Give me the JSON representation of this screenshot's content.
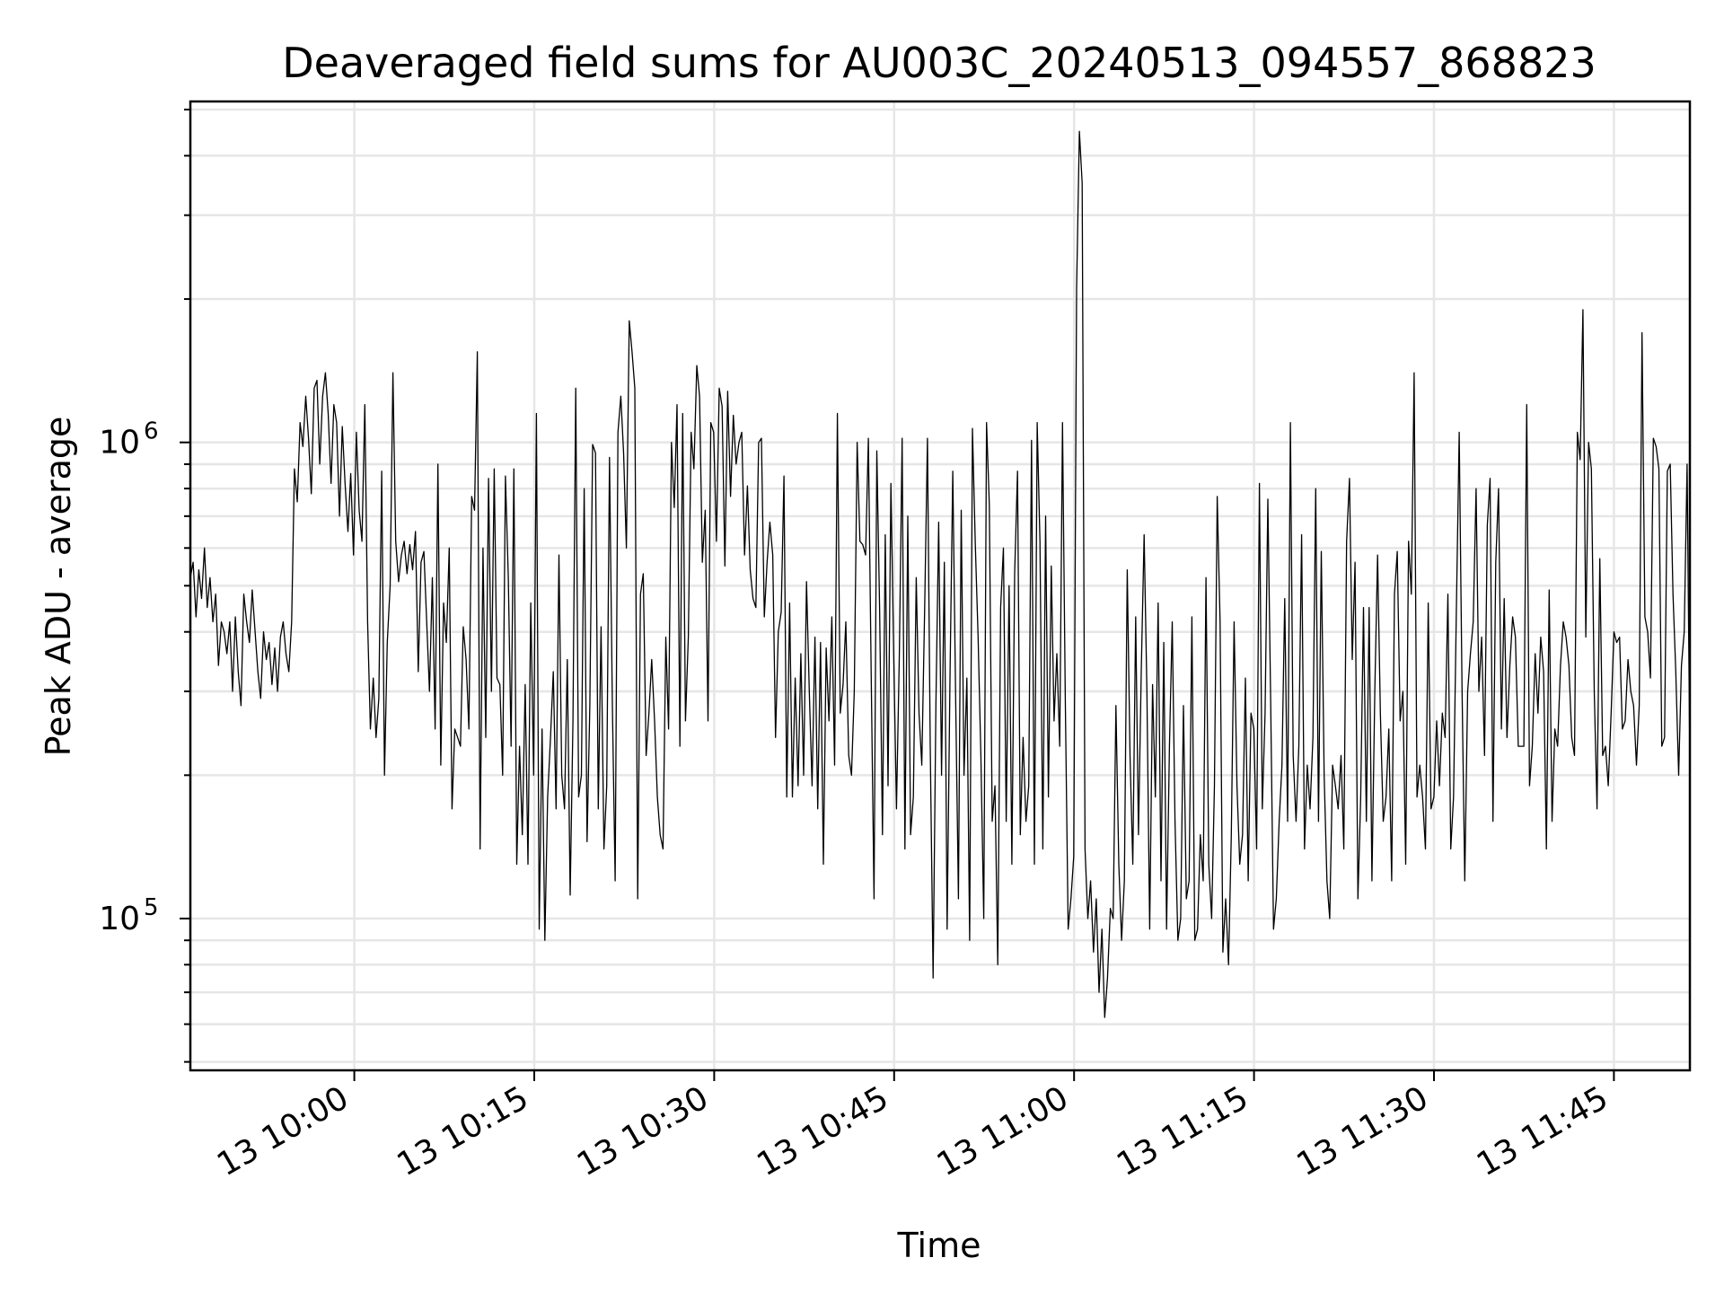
{
  "chart_data": {
    "type": "line",
    "title": "Deaveraged field sums for AU003C_20240513_094557_868823",
    "xlabel": "Time",
    "ylabel": "Peak ADU - average",
    "yscale": "log",
    "grid": true,
    "x_tick_labels": [
      "13 10:00",
      "13 10:15",
      "13 10:30",
      "13 10:45",
      "13 11:00",
      "13 11:15",
      "13 11:30",
      "13 11:45"
    ],
    "y_tick_labels": [
      {
        "base": "10",
        "exp": "5"
      },
      {
        "base": "10",
        "exp": "6"
      }
    ],
    "series": [
      {
        "color": "#000000",
        "x_start": "2024-05-13 09:46:20",
        "x_end": "2024-05-13 11:51:20",
        "values": [
          520000,
          560000,
          430000,
          540000,
          470000,
          600000,
          450000,
          520000,
          420000,
          480000,
          340000,
          420000,
          400000,
          360000,
          420000,
          300000,
          430000,
          330000,
          280000,
          480000,
          420000,
          380000,
          490000,
          400000,
          330000,
          290000,
          400000,
          350000,
          380000,
          310000,
          370000,
          300000,
          390000,
          420000,
          360000,
          330000,
          420000,
          880000,
          750000,
          1100000,
          980000,
          1250000,
          1020000,
          780000,
          1300000,
          1350000,
          900000,
          1250000,
          1400000,
          1150000,
          820000,
          1200000,
          1100000,
          700000,
          1080000,
          820000,
          650000,
          860000,
          580000,
          1050000,
          720000,
          620000,
          1200000,
          420000,
          250000,
          320000,
          240000,
          290000,
          870000,
          200000,
          380000,
          500000,
          1400000,
          620000,
          510000,
          580000,
          620000,
          530000,
          610000,
          540000,
          650000,
          330000,
          560000,
          590000,
          420000,
          300000,
          520000,
          250000,
          900000,
          210000,
          460000,
          380000,
          600000,
          170000,
          250000,
          240000,
          230000,
          410000,
          350000,
          250000,
          770000,
          720000,
          1550000,
          140000,
          600000,
          240000,
          840000,
          300000,
          880000,
          320000,
          310000,
          200000,
          850000,
          520000,
          230000,
          880000,
          130000,
          230000,
          150000,
          310000,
          130000,
          460000,
          200000,
          1150000,
          95000,
          250000,
          90000,
          180000,
          240000,
          330000,
          170000,
          580000,
          200000,
          170000,
          350000,
          112000,
          260000,
          1300000,
          180000,
          200000,
          800000,
          145000,
          280000,
          990000,
          950000,
          170000,
          410000,
          140000,
          190000,
          930000,
          280000,
          120000,
          1050000,
          1250000,
          950000,
          600000,
          1800000,
          1550000,
          1300000,
          110000,
          480000,
          530000,
          220000,
          270000,
          350000,
          260000,
          180000,
          150000,
          140000,
          390000,
          250000,
          1000000,
          730000,
          1200000,
          230000,
          1150000,
          260000,
          390000,
          1050000,
          880000,
          1450000,
          1250000,
          560000,
          720000,
          260000,
          1100000,
          1050000,
          620000,
          1300000,
          1190000,
          550000,
          1280000,
          770000,
          1140000,
          900000,
          1000000,
          1050000,
          580000,
          810000,
          540000,
          470000,
          450000,
          1000000,
          1020000,
          430000,
          560000,
          680000,
          580000,
          240000,
          400000,
          440000,
          850000,
          180000,
          460000,
          180000,
          320000,
          190000,
          360000,
          200000,
          510000,
          300000,
          190000,
          390000,
          170000,
          380000,
          130000,
          370000,
          260000,
          430000,
          210000,
          1150000,
          270000,
          310000,
          420000,
          220000,
          200000,
          300000,
          1000000,
          620000,
          610000,
          580000,
          1020000,
          330000,
          110000,
          960000,
          450000,
          150000,
          640000,
          190000,
          820000,
          360000,
          170000,
          360000,
          1020000,
          140000,
          700000,
          150000,
          180000,
          520000,
          270000,
          210000,
          450000,
          1020000,
          230000,
          75000,
          280000,
          680000,
          200000,
          560000,
          95000,
          320000,
          870000,
          300000,
          110000,
          720000,
          200000,
          320000,
          90000,
          1070000,
          610000,
          390000,
          220000,
          100000,
          1100000,
          740000,
          160000,
          190000,
          80000,
          450000,
          600000,
          160000,
          500000,
          130000,
          530000,
          870000,
          150000,
          240000,
          160000,
          190000,
          1010000,
          130000,
          1100000,
          620000,
          140000,
          700000,
          180000,
          550000,
          260000,
          360000,
          230000,
          1100000,
          290000,
          95000,
          110000,
          135000,
          2100000,
          4500000,
          3500000,
          140000,
          100000,
          120000,
          85000,
          110000,
          70000,
          95000,
          62000,
          75000,
          105000,
          100000,
          280000,
          130000,
          90000,
          120000,
          540000,
          220000,
          130000,
          430000,
          150000,
          330000,
          640000,
          300000,
          95000,
          310000,
          180000,
          460000,
          120000,
          380000,
          95000,
          230000,
          420000,
          160000,
          90000,
          100000,
          280000,
          110000,
          120000,
          430000,
          90000,
          95000,
          150000,
          120000,
          520000,
          130000,
          100000,
          190000,
          770000,
          420000,
          85000,
          110000,
          80000,
          150000,
          420000,
          190000,
          130000,
          150000,
          320000,
          120000,
          270000,
          250000,
          140000,
          820000,
          170000,
          270000,
          760000,
          280000,
          95000,
          110000,
          160000,
          210000,
          470000,
          160000,
          1100000,
          220000,
          160000,
          230000,
          640000,
          140000,
          210000,
          170000,
          240000,
          800000,
          160000,
          590000,
          200000,
          120000,
          100000,
          210000,
          190000,
          170000,
          220000,
          140000,
          620000,
          840000,
          350000,
          560000,
          110000,
          180000,
          450000,
          160000,
          450000,
          120000,
          300000,
          580000,
          270000,
          160000,
          180000,
          250000,
          120000,
          480000,
          590000,
          260000,
          300000,
          130000,
          620000,
          480000,
          1400000,
          180000,
          210000,
          180000,
          140000,
          460000,
          170000,
          180000,
          260000,
          190000,
          270000,
          240000,
          480000,
          140000,
          180000,
          440000,
          1050000,
          310000,
          120000,
          300000,
          360000,
          420000,
          800000,
          300000,
          390000,
          220000,
          670000,
          840000,
          160000,
          560000,
          800000,
          250000,
          470000,
          240000,
          340000,
          430000,
          390000,
          230000,
          230000,
          230000,
          1200000,
          190000,
          230000,
          360000,
          270000,
          390000,
          330000,
          140000,
          490000,
          160000,
          250000,
          230000,
          340000,
          420000,
          390000,
          340000,
          240000,
          220000,
          1050000,
          920000,
          1900000,
          390000,
          1000000,
          880000,
          300000,
          170000,
          570000,
          220000,
          230000,
          190000,
          270000,
          400000,
          380000,
          390000,
          250000,
          260000,
          350000,
          300000,
          280000,
          210000,
          280000,
          1700000,
          430000,
          400000,
          320000,
          1020000,
          980000,
          880000,
          230000,
          240000,
          870000,
          900000,
          480000,
          330000,
          200000,
          340000,
          400000,
          900000,
          210000
        ]
      }
    ]
  }
}
